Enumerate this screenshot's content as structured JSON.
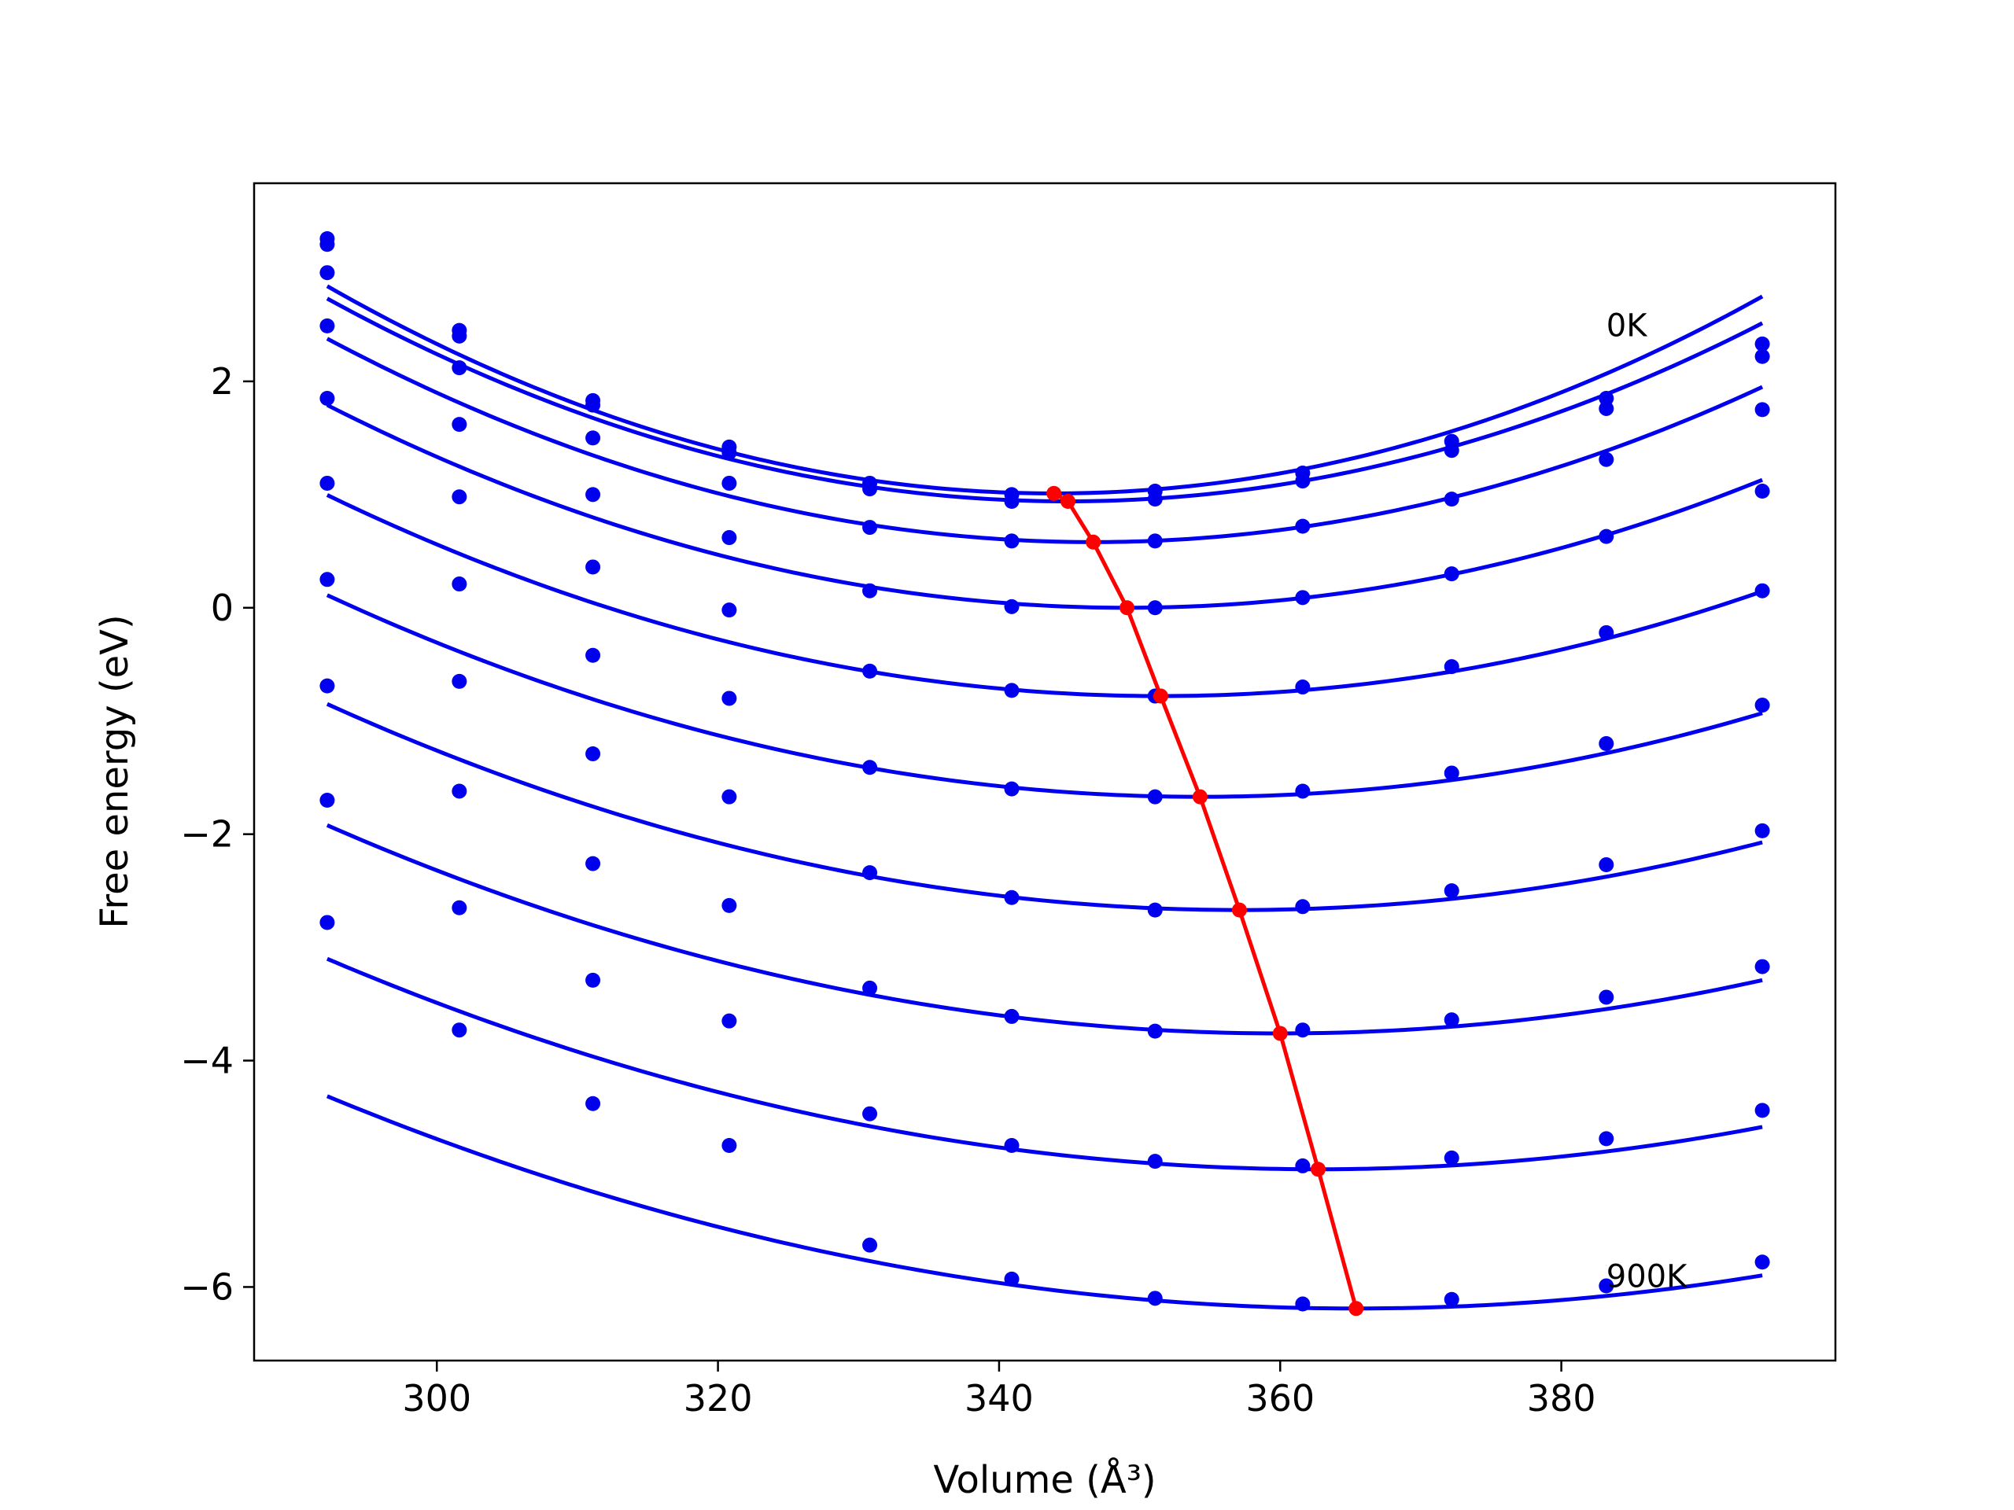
{
  "chart_data": {
    "type": "line",
    "title": "",
    "xlabel": "Volume (Å³)",
    "ylabel": "Free energy (eV)",
    "xlim": [
      287.0,
      399.5
    ],
    "ylim": [
      -6.65,
      3.75
    ],
    "xticks": [
      300,
      320,
      340,
      360,
      380
    ],
    "yticks": [
      2,
      0,
      -2,
      -4,
      -6
    ],
    "xtick_labels": [
      "300",
      "320",
      "340",
      "360",
      "380"
    ],
    "ytick_labels": [
      "2",
      "0",
      "−2",
      "−4",
      "−6"
    ],
    "grid": false,
    "legend": "none",
    "annotations": [
      {
        "text": "0K",
        "x": 383.2,
        "y": 2.4
      },
      {
        "text": "900K",
        "x": 383.2,
        "y": -6.0
      }
    ],
    "x": [
      292.2,
      301.6,
      311.1,
      320.8,
      330.8,
      340.9,
      351.1,
      361.6,
      372.2,
      383.2,
      394.3
    ],
    "colors": {
      "series": "#0000ee",
      "minima": "#ff0000"
    },
    "series": [
      {
        "values": [
          3.26,
          2.45,
          1.83,
          1.42,
          1.1,
          1.0,
          1.03,
          1.19,
          1.47,
          1.85,
          2.33
        ],
        "fit": {
          "a": 0.000685,
          "v0": 343.9,
          "e0": 1.01
        }
      },
      {
        "values": [
          3.21,
          2.4,
          1.79,
          1.37,
          1.05,
          0.94,
          0.96,
          1.12,
          1.39,
          1.76,
          2.22
        ],
        "fit": {
          "a": 0.000645,
          "v0": 344.9,
          "e0": 0.94
        }
      },
      {
        "values": [
          2.96,
          2.12,
          1.5,
          1.1,
          0.71,
          0.59,
          0.59,
          0.72,
          0.96,
          1.31,
          1.75
        ],
        "fit": {
          "a": 0.000605,
          "v0": 346.7,
          "e0": 0.58
        }
      },
      {
        "values": [
          2.49,
          1.62,
          1.0,
          0.62,
          0.15,
          0.01,
          0.0,
          0.09,
          0.3,
          0.63,
          1.03
        ],
        "fit": {
          "a": 0.000553,
          "v0": 349.1,
          "e0": 0.0
        }
      },
      {
        "values": [
          1.85,
          0.98,
          0.36,
          -0.02,
          -0.56,
          -0.73,
          -0.78,
          -0.7,
          -0.52,
          -0.22,
          0.15
        ],
        "fit": {
          "a": 0.000505,
          "v0": 351.5,
          "e0": -0.78
        }
      },
      {
        "values": [
          1.1,
          0.21,
          -0.42,
          -0.8,
          -1.41,
          -1.6,
          -1.67,
          -1.62,
          -1.46,
          -1.2,
          -0.86
        ],
        "fit": {
          "a": 0.000462,
          "v0": 354.3,
          "e0": -1.67
        }
      },
      {
        "values": [
          0.25,
          -0.65,
          -1.29,
          -1.67,
          -2.34,
          -2.56,
          -2.67,
          -2.64,
          -2.5,
          -2.27,
          -1.97
        ],
        "fit": {
          "a": 0.000432,
          "v0": 357.1,
          "e0": -2.67
        }
      },
      {
        "values": [
          -0.69,
          -1.62,
          -2.26,
          -2.63,
          -3.36,
          -3.61,
          -3.74,
          -3.73,
          -3.64,
          -3.44,
          -3.17
        ],
        "fit": {
          "a": 0.0004,
          "v0": 360.0,
          "e0": -3.76
        }
      },
      {
        "values": [
          -1.7,
          -2.65,
          -3.29,
          -3.65,
          -4.47,
          -4.75,
          -4.89,
          -4.93,
          -4.86,
          -4.69,
          -4.44
        ],
        "fit": {
          "a": 0.000374,
          "v0": 362.7,
          "e0": -4.96
        }
      },
      {
        "values": [
          -2.78,
          -3.73,
          -4.38,
          -4.75,
          -5.63,
          -5.93,
          -6.1,
          -6.15,
          -6.11,
          -5.99,
          -5.78
        ],
        "fit": {
          "a": 0.00035,
          "v0": 365.4,
          "e0": -6.19
        }
      }
    ],
    "minima": {
      "x": [
        343.9,
        344.9,
        346.7,
        349.1,
        351.5,
        354.3,
        357.1,
        360.0,
        362.7,
        365.4
      ],
      "y": [
        1.01,
        0.94,
        0.58,
        0.0,
        -0.78,
        -1.67,
        -2.67,
        -3.76,
        -4.96,
        -6.19
      ]
    }
  }
}
